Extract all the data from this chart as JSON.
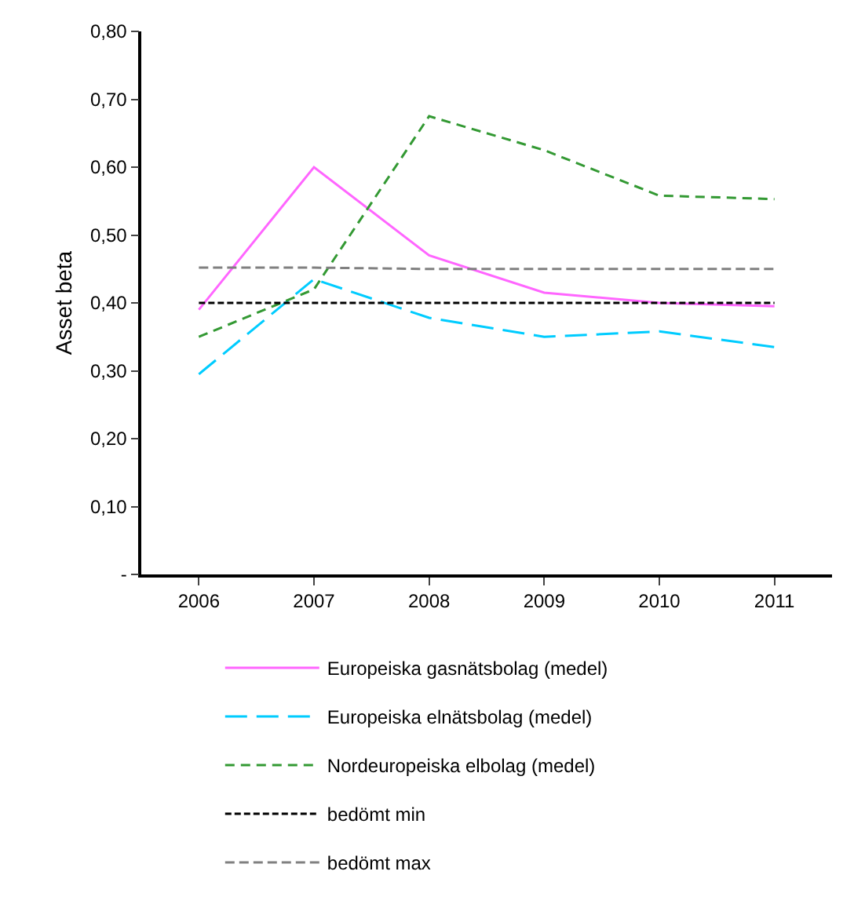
{
  "chart_data": {
    "type": "line",
    "ylabel": "Asset beta",
    "categories": [
      "2006",
      "2007",
      "2008",
      "2009",
      "2010",
      "2011"
    ],
    "series": [
      {
        "name": "Europeiska gasnätsbolag (medel)",
        "color": "#ff66ff",
        "line_style": "solid",
        "values": [
          0.39,
          0.6,
          0.47,
          0.415,
          0.4,
          0.395
        ]
      },
      {
        "name": "Europeiska elnätsbolag (medel)",
        "color": "#00ccff",
        "line_style": "dashed",
        "values": [
          0.295,
          0.435,
          0.378,
          0.35,
          0.358,
          0.335
        ]
      },
      {
        "name": "Nordeuropeiska elbolag (medel)",
        "color": "#339933",
        "line_style": "dashed",
        "values": [
          0.35,
          0.42,
          0.675,
          0.625,
          0.558,
          0.553
        ]
      },
      {
        "name": "bedömt min",
        "color": "#000000",
        "line_style": "dashed",
        "values": [
          0.4,
          0.4,
          0.4,
          0.4,
          0.4,
          0.4
        ]
      },
      {
        "name": "bedömt max",
        "color": "#808080",
        "line_style": "dashed",
        "values": [
          0.452,
          0.452,
          0.45,
          0.45,
          0.45,
          0.45
        ]
      }
    ],
    "ylim": [
      0,
      0.8
    ],
    "yticks": [
      {
        "value": 0,
        "label": "-"
      },
      {
        "value": 0.1,
        "label": "0,10"
      },
      {
        "value": 0.2,
        "label": "0,20"
      },
      {
        "value": 0.3,
        "label": "0,30"
      },
      {
        "value": 0.4,
        "label": "0,40"
      },
      {
        "value": 0.5,
        "label": "0,50"
      },
      {
        "value": 0.6,
        "label": "0,60"
      },
      {
        "value": 0.7,
        "label": "0,70"
      },
      {
        "value": 0.8,
        "label": "0,80"
      }
    ],
    "legend": "bottom",
    "marker": "none"
  }
}
